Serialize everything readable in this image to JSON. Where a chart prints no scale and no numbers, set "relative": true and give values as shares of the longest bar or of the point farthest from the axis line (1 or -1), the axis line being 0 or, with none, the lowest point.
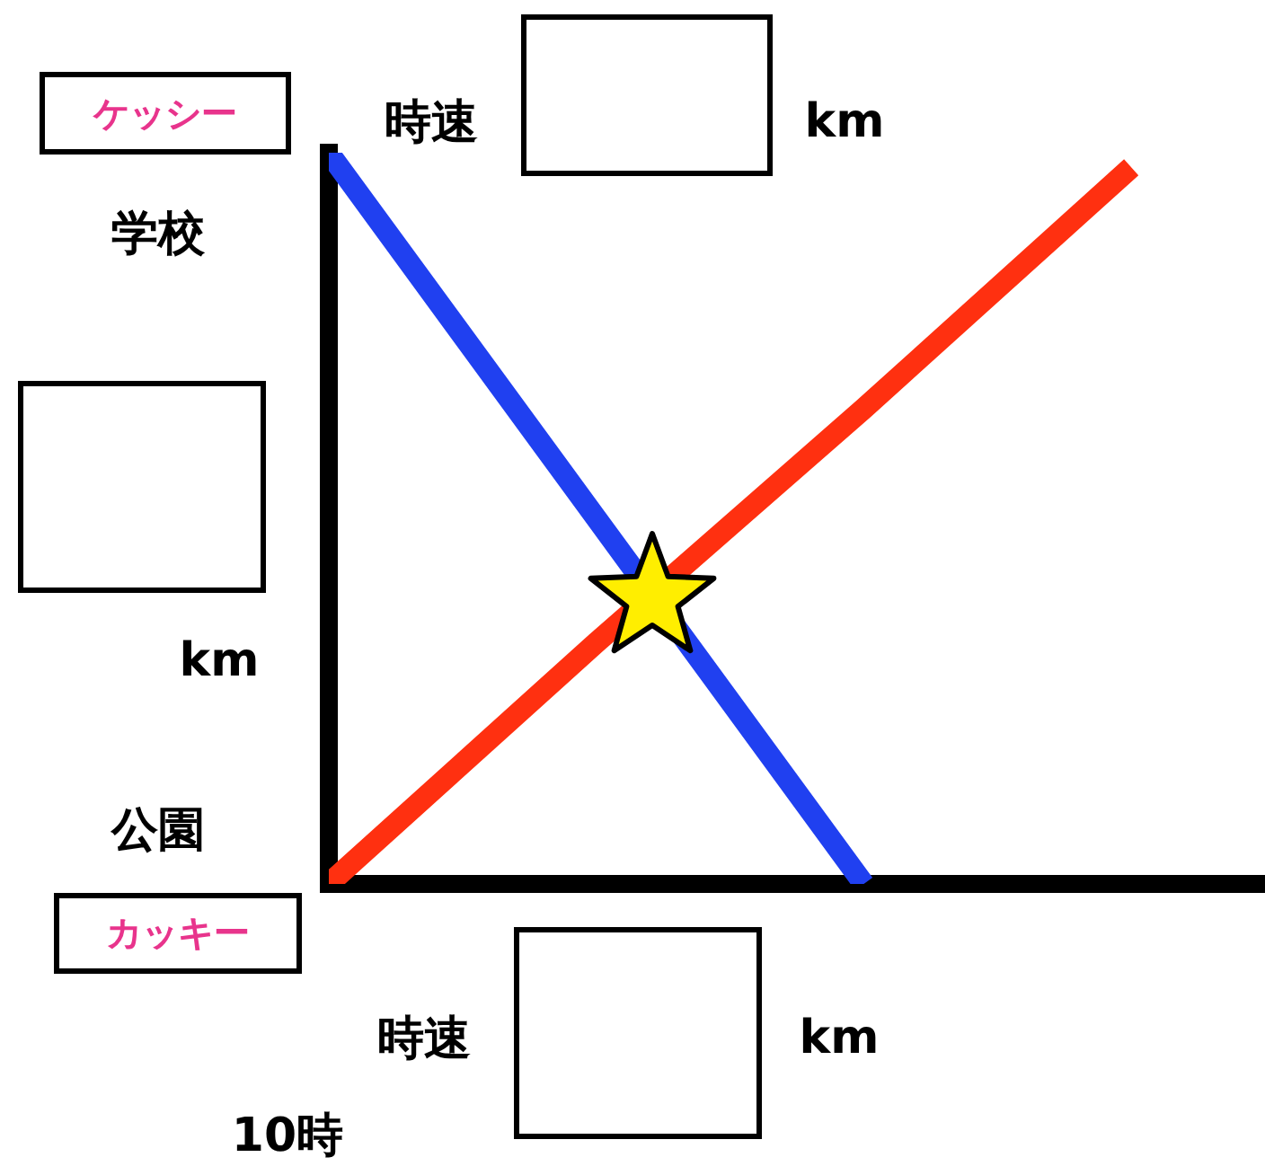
{
  "chart_data": {
    "type": "line",
    "relative": true,
    "categories": [
      null,
      null,
      null,
      null
    ],
    "series": [
      {
        "name": "ケッシー",
        "color": "#2040f0",
        "values": [
          1,
          0.5,
          0,
          null
        ]
      },
      {
        "name": "カッキー",
        "color": "#ff3010",
        "values": [
          0,
          0.33,
          0.65,
          0.98
        ]
      }
    ],
    "annotations": [
      "学校",
      "公園",
      "km",
      "時速",
      "km",
      "時速",
      "km",
      "10時"
    ],
    "legend": false,
    "grid": false,
    "tick_labels": false,
    "marker": "none",
    "line_style": "solid"
  }
}
